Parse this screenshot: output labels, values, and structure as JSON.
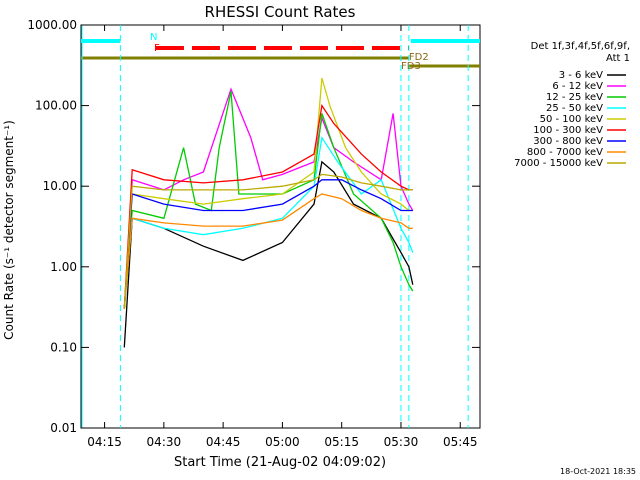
{
  "chart_data": {
    "type": "line",
    "title": "RHESSI Count Rates",
    "xlabel": "Start Time (21-Aug-02 04:09:02)",
    "ylabel": "Count Rate (s⁻¹ detector segment⁻¹)",
    "yscale": "log",
    "ylim": [
      0.01,
      1000
    ],
    "xlim": [
      "04:09:02",
      "05:50:00"
    ],
    "x_ticks": [
      "04:15",
      "04:30",
      "04:45",
      "05:00",
      "05:15",
      "05:30",
      "05:45"
    ],
    "y_ticks": [
      "0.01",
      "0.10",
      "1.00",
      "10.00",
      "100.00",
      "1000.00"
    ],
    "legend_position": "right",
    "legend_header": [
      "Det 1f,3f,4f,5f,6f,9f,",
      "Att 1"
    ],
    "series": [
      {
        "name": "3 - 6 keV",
        "color": "#000000",
        "x": [
          "04:20",
          "04:22",
          "04:30",
          "04:40",
          "04:50",
          "05:00",
          "05:08",
          "05:10",
          "05:13",
          "05:18",
          "05:25",
          "05:30",
          "05:32",
          "05:33"
        ],
        "y": [
          0.1,
          4,
          3,
          1.8,
          1.2,
          2,
          6,
          20,
          15,
          6,
          4,
          1.5,
          1,
          0.6
        ]
      },
      {
        "name": "6 - 12 keV",
        "color": "#ff00ff",
        "x": [
          "04:20",
          "04:22",
          "04:30",
          "04:35",
          "04:40",
          "04:47",
          "04:52",
          "04:55",
          "05:00",
          "05:08",
          "05:10",
          "05:13",
          "05:18",
          "05:25",
          "05:28",
          "05:30",
          "05:32",
          "05:33"
        ],
        "y": [
          0.3,
          12,
          9,
          12,
          15,
          160,
          40,
          12,
          14,
          20,
          70,
          30,
          20,
          12,
          80,
          10,
          6,
          5
        ]
      },
      {
        "name": "12 - 25 keV",
        "color": "#00cc00",
        "x": [
          "04:20",
          "04:22",
          "04:30",
          "04:35",
          "04:38",
          "04:42",
          "04:44",
          "04:47",
          "04:49",
          "05:00",
          "05:08",
          "05:10",
          "05:13",
          "05:18",
          "05:25",
          "05:28",
          "05:30",
          "05:32",
          "05:33"
        ],
        "y": [
          0.3,
          5,
          4,
          30,
          6,
          5,
          30,
          150,
          8,
          8,
          12,
          80,
          30,
          8,
          4,
          2,
          1,
          0.6,
          0.5
        ]
      },
      {
        "name": "25 - 50 keV",
        "color": "#00ffff",
        "x": [
          "04:20",
          "04:22",
          "04:30",
          "04:40",
          "04:50",
          "05:00",
          "05:08",
          "05:10",
          "05:14",
          "05:20",
          "05:25",
          "05:30",
          "05:32",
          "05:33"
        ],
        "y": [
          0.3,
          4,
          3,
          2.5,
          3,
          4,
          10,
          40,
          20,
          8,
          12,
          3,
          2,
          1.5
        ]
      },
      {
        "name": "50 - 100 keV",
        "color": "#cccc00",
        "x": [
          "04:20",
          "04:22",
          "04:30",
          "04:40",
          "04:50",
          "05:00",
          "05:08",
          "05:10",
          "05:12",
          "05:16",
          "05:20",
          "05:25",
          "05:30",
          "05:32",
          "05:33"
        ],
        "y": [
          0.3,
          8,
          7,
          6,
          7,
          8,
          15,
          220,
          100,
          30,
          15,
          8,
          6,
          5,
          5
        ]
      },
      {
        "name": "100 - 300 keV",
        "color": "#ff0000",
        "x": [
          "04:20",
          "04:22",
          "04:30",
          "04:40",
          "04:50",
          "05:00",
          "05:08",
          "05:10",
          "05:13",
          "05:20",
          "05:25",
          "05:30",
          "05:32",
          "05:33"
        ],
        "y": [
          0.3,
          16,
          12,
          11,
          12,
          15,
          25,
          100,
          60,
          25,
          15,
          10,
          9,
          9
        ]
      },
      {
        "name": "300 - 800 keV",
        "color": "#0000ff",
        "x": [
          "04:20",
          "04:22",
          "04:30",
          "04:40",
          "04:50",
          "05:00",
          "05:08",
          "05:10",
          "05:15",
          "05:20",
          "05:25",
          "05:30",
          "05:32",
          "05:33"
        ],
        "y": [
          0.3,
          8,
          6,
          5,
          5,
          6,
          10,
          12,
          12,
          9,
          7,
          5,
          5,
          5
        ]
      },
      {
        "name": "800 - 7000 keV",
        "color": "#ff8800",
        "x": [
          "04:20",
          "04:22",
          "04:30",
          "04:40",
          "04:50",
          "05:00",
          "05:08",
          "05:10",
          "05:15",
          "05:20",
          "05:25",
          "05:30",
          "05:32",
          "05:33"
        ],
        "y": [
          0.3,
          4,
          3.5,
          3.2,
          3.2,
          3.8,
          7,
          8,
          7,
          5,
          4,
          3.5,
          3,
          3
        ]
      },
      {
        "name": "7000 - 15000 keV",
        "color": "#bbaa00",
        "x": [
          "04:20",
          "04:22",
          "04:30",
          "04:40",
          "04:50",
          "05:00",
          "05:08",
          "05:10",
          "05:15",
          "05:20",
          "05:25",
          "05:30",
          "05:32",
          "05:33"
        ],
        "y": [
          0.3,
          10,
          9,
          9,
          9,
          10,
          12,
          14,
          13,
          11,
          10,
          9,
          9,
          9
        ]
      }
    ],
    "annotations": [
      {
        "text": "N",
        "color": "#00ffff",
        "x": "04:26"
      },
      {
        "text": "F",
        "color": "#ff0000",
        "x": "04:27"
      },
      {
        "text": "FD2",
        "color": "#8b6914",
        "x": "05:31"
      },
      {
        "text": "FD3",
        "color": "#8b6914",
        "x": "05:29"
      }
    ]
  },
  "colors": {
    "night_band": "#00ffff",
    "flare_band": "#ff0000",
    "data_gap_band": "#808000",
    "saa_lines": "#00ffff"
  },
  "timestamp": "18-Oct-2021 18:35"
}
